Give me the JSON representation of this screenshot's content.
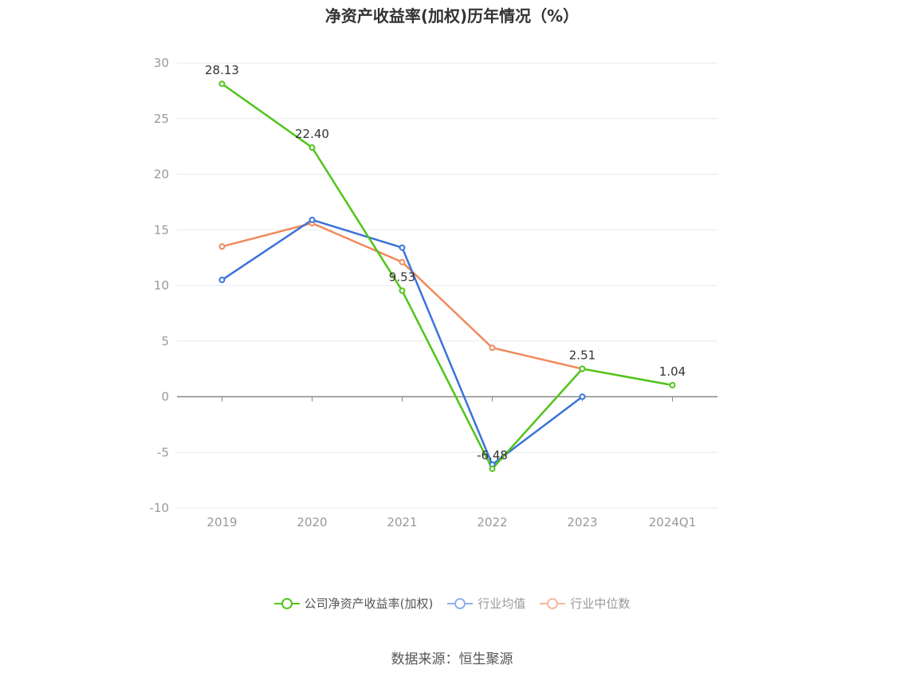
{
  "title": "净资产收益率(加权)历年情况（%）",
  "source": "数据来源：恒生聚源",
  "colors": {
    "company": "#52c41a",
    "industry_avg": "#3b73d9",
    "industry_median": "#f08a5d",
    "grid": "#e6e8f0",
    "axis": "#888888",
    "tick_text": "#999999"
  },
  "chart_data": {
    "type": "line",
    "title": "净资产收益率(加权)历年情况（%）",
    "xlabel": "",
    "ylabel": "",
    "categories": [
      "2019",
      "2020",
      "2021",
      "2022",
      "2023",
      "2024Q1"
    ],
    "ylim": [
      -10,
      30
    ],
    "yticks": [
      30,
      25,
      20,
      15,
      10,
      5,
      0,
      -5,
      -10
    ],
    "grid": true,
    "legend_position": "bottom",
    "series": [
      {
        "name": "公司净资产收益率(加权)",
        "color": "#52c41a",
        "values": [
          28.13,
          22.4,
          9.53,
          -6.48,
          2.51,
          1.04
        ],
        "labels": [
          "28.13",
          "22.40",
          "9.53",
          "-6.48",
          "2.51",
          "1.04"
        ]
      },
      {
        "name": "行业均值",
        "color": "#3b73d9",
        "values": [
          10.5,
          15.9,
          13.4,
          -6.1,
          0.0,
          null
        ]
      },
      {
        "name": "行业中位数",
        "color": "#f08a5d",
        "values": [
          13.5,
          15.6,
          12.1,
          4.4,
          2.5,
          null
        ]
      }
    ]
  }
}
